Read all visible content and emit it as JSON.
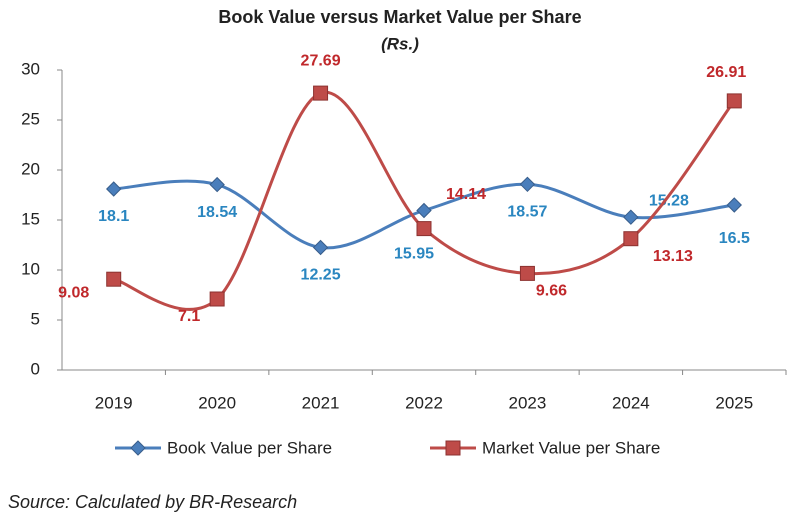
{
  "chart_data": {
    "type": "line",
    "title": "Book Value versus Market Value per Share",
    "subtitle": "(Rs.)",
    "categories": [
      "2019",
      "2020",
      "2021",
      "2022",
      "2023",
      "2024",
      "2025"
    ],
    "series": [
      {
        "name": "Book Value per Share",
        "color": "#4a7ebb",
        "label_color": "#2a86c0",
        "marker": "diamond",
        "values": [
          18.1,
          18.54,
          12.25,
          15.95,
          18.57,
          15.28,
          16.5
        ]
      },
      {
        "name": "Market Value per Share",
        "color": "#be4b48",
        "label_color": "#c0282b",
        "marker": "square",
        "values": [
          9.08,
          7.1,
          27.69,
          14.14,
          9.66,
          13.13,
          26.91
        ]
      }
    ],
    "ylim": [
      0,
      30
    ],
    "yticks": [
      0,
      5,
      10,
      15,
      20,
      25,
      30
    ],
    "grid": false,
    "smooth": true,
    "legend": "bottom",
    "source": "Source: Calculated by BR-Research"
  }
}
